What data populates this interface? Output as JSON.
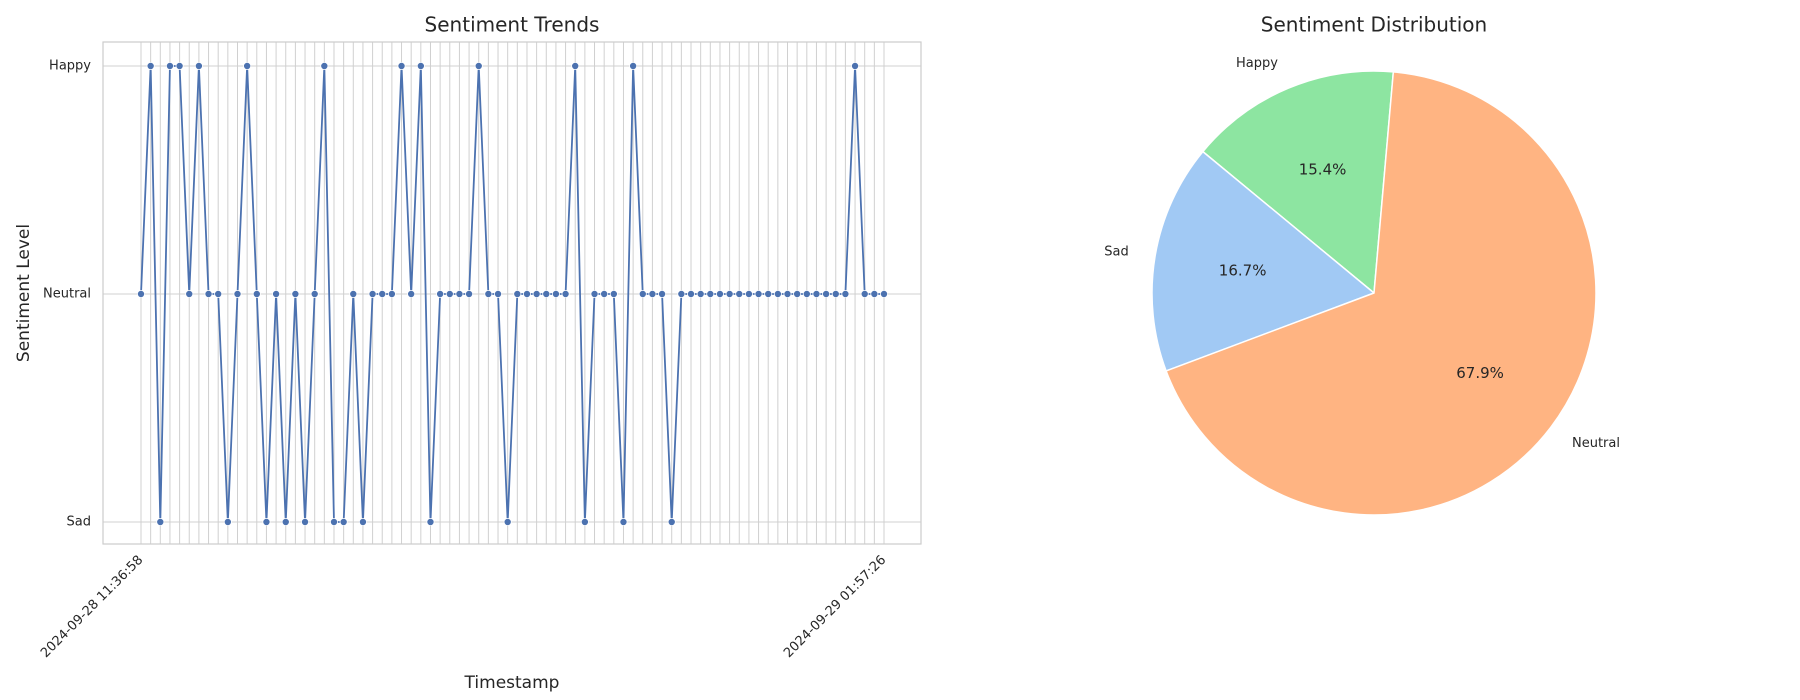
{
  "chart_data": [
    {
      "type": "line",
      "title": "Sentiment Trends",
      "x_label": "Timestamp",
      "y_label": "Sentiment Level",
      "y_categories": [
        "Sad",
        "Neutral",
        "Happy"
      ],
      "categories": [
        "2024-09-28 11:36:58",
        null,
        null,
        null,
        null,
        null,
        null,
        null,
        null,
        null,
        null,
        null,
        null,
        null,
        null,
        null,
        null,
        null,
        null,
        null,
        null,
        null,
        null,
        null,
        null,
        null,
        null,
        null,
        null,
        null,
        null,
        null,
        null,
        null,
        null,
        null,
        null,
        null,
        null,
        null,
        null,
        null,
        null,
        null,
        null,
        null,
        null,
        null,
        null,
        null,
        null,
        null,
        null,
        null,
        null,
        null,
        null,
        null,
        null,
        null,
        null,
        null,
        null,
        null,
        null,
        null,
        null,
        null,
        null,
        null,
        null,
        null,
        null,
        null,
        null,
        null,
        null,
        "2024-09-29 01:57:26"
      ],
      "series": [
        {
          "name": "Sentiment",
          "color": "#4c72b0",
          "values": [
            "Neutral",
            "Happy",
            "Sad",
            "Happy",
            "Happy",
            "Neutral",
            "Happy",
            "Neutral",
            "Neutral",
            "Sad",
            "Neutral",
            "Happy",
            "Neutral",
            "Sad",
            "Neutral",
            "Sad",
            "Neutral",
            "Sad",
            "Neutral",
            "Happy",
            "Sad",
            "Sad",
            "Neutral",
            "Sad",
            "Neutral",
            "Neutral",
            "Neutral",
            "Happy",
            "Neutral",
            "Happy",
            "Sad",
            "Neutral",
            "Neutral",
            "Neutral",
            "Neutral",
            "Happy",
            "Neutral",
            "Neutral",
            "Sad",
            "Neutral",
            "Neutral",
            "Neutral",
            "Neutral",
            "Neutral",
            "Neutral",
            "Happy",
            "Sad",
            "Neutral",
            "Neutral",
            "Neutral",
            "Sad",
            "Happy",
            "Neutral",
            "Neutral",
            "Neutral",
            "Sad",
            "Neutral",
            "Neutral",
            "Neutral",
            "Neutral",
            "Neutral",
            "Neutral",
            "Neutral",
            "Neutral",
            "Neutral",
            "Neutral",
            "Neutral",
            "Neutral",
            "Neutral",
            "Neutral",
            "Neutral",
            "Neutral",
            "Neutral",
            "Neutral",
            "Happy",
            "Neutral",
            "Neutral",
            "Neutral"
          ]
        }
      ],
      "grid": true
    },
    {
      "type": "pie",
      "title": "Sentiment Distribution",
      "categories": [
        "Happy",
        "Sad",
        "Neutral"
      ],
      "values": [
        15.4,
        16.7,
        67.9
      ],
      "value_labels": [
        "15.4%",
        "16.7%",
        "67.9%"
      ],
      "colors": [
        "#8de5a1",
        "#a1c9f4",
        "#ffb482"
      ]
    }
  ]
}
